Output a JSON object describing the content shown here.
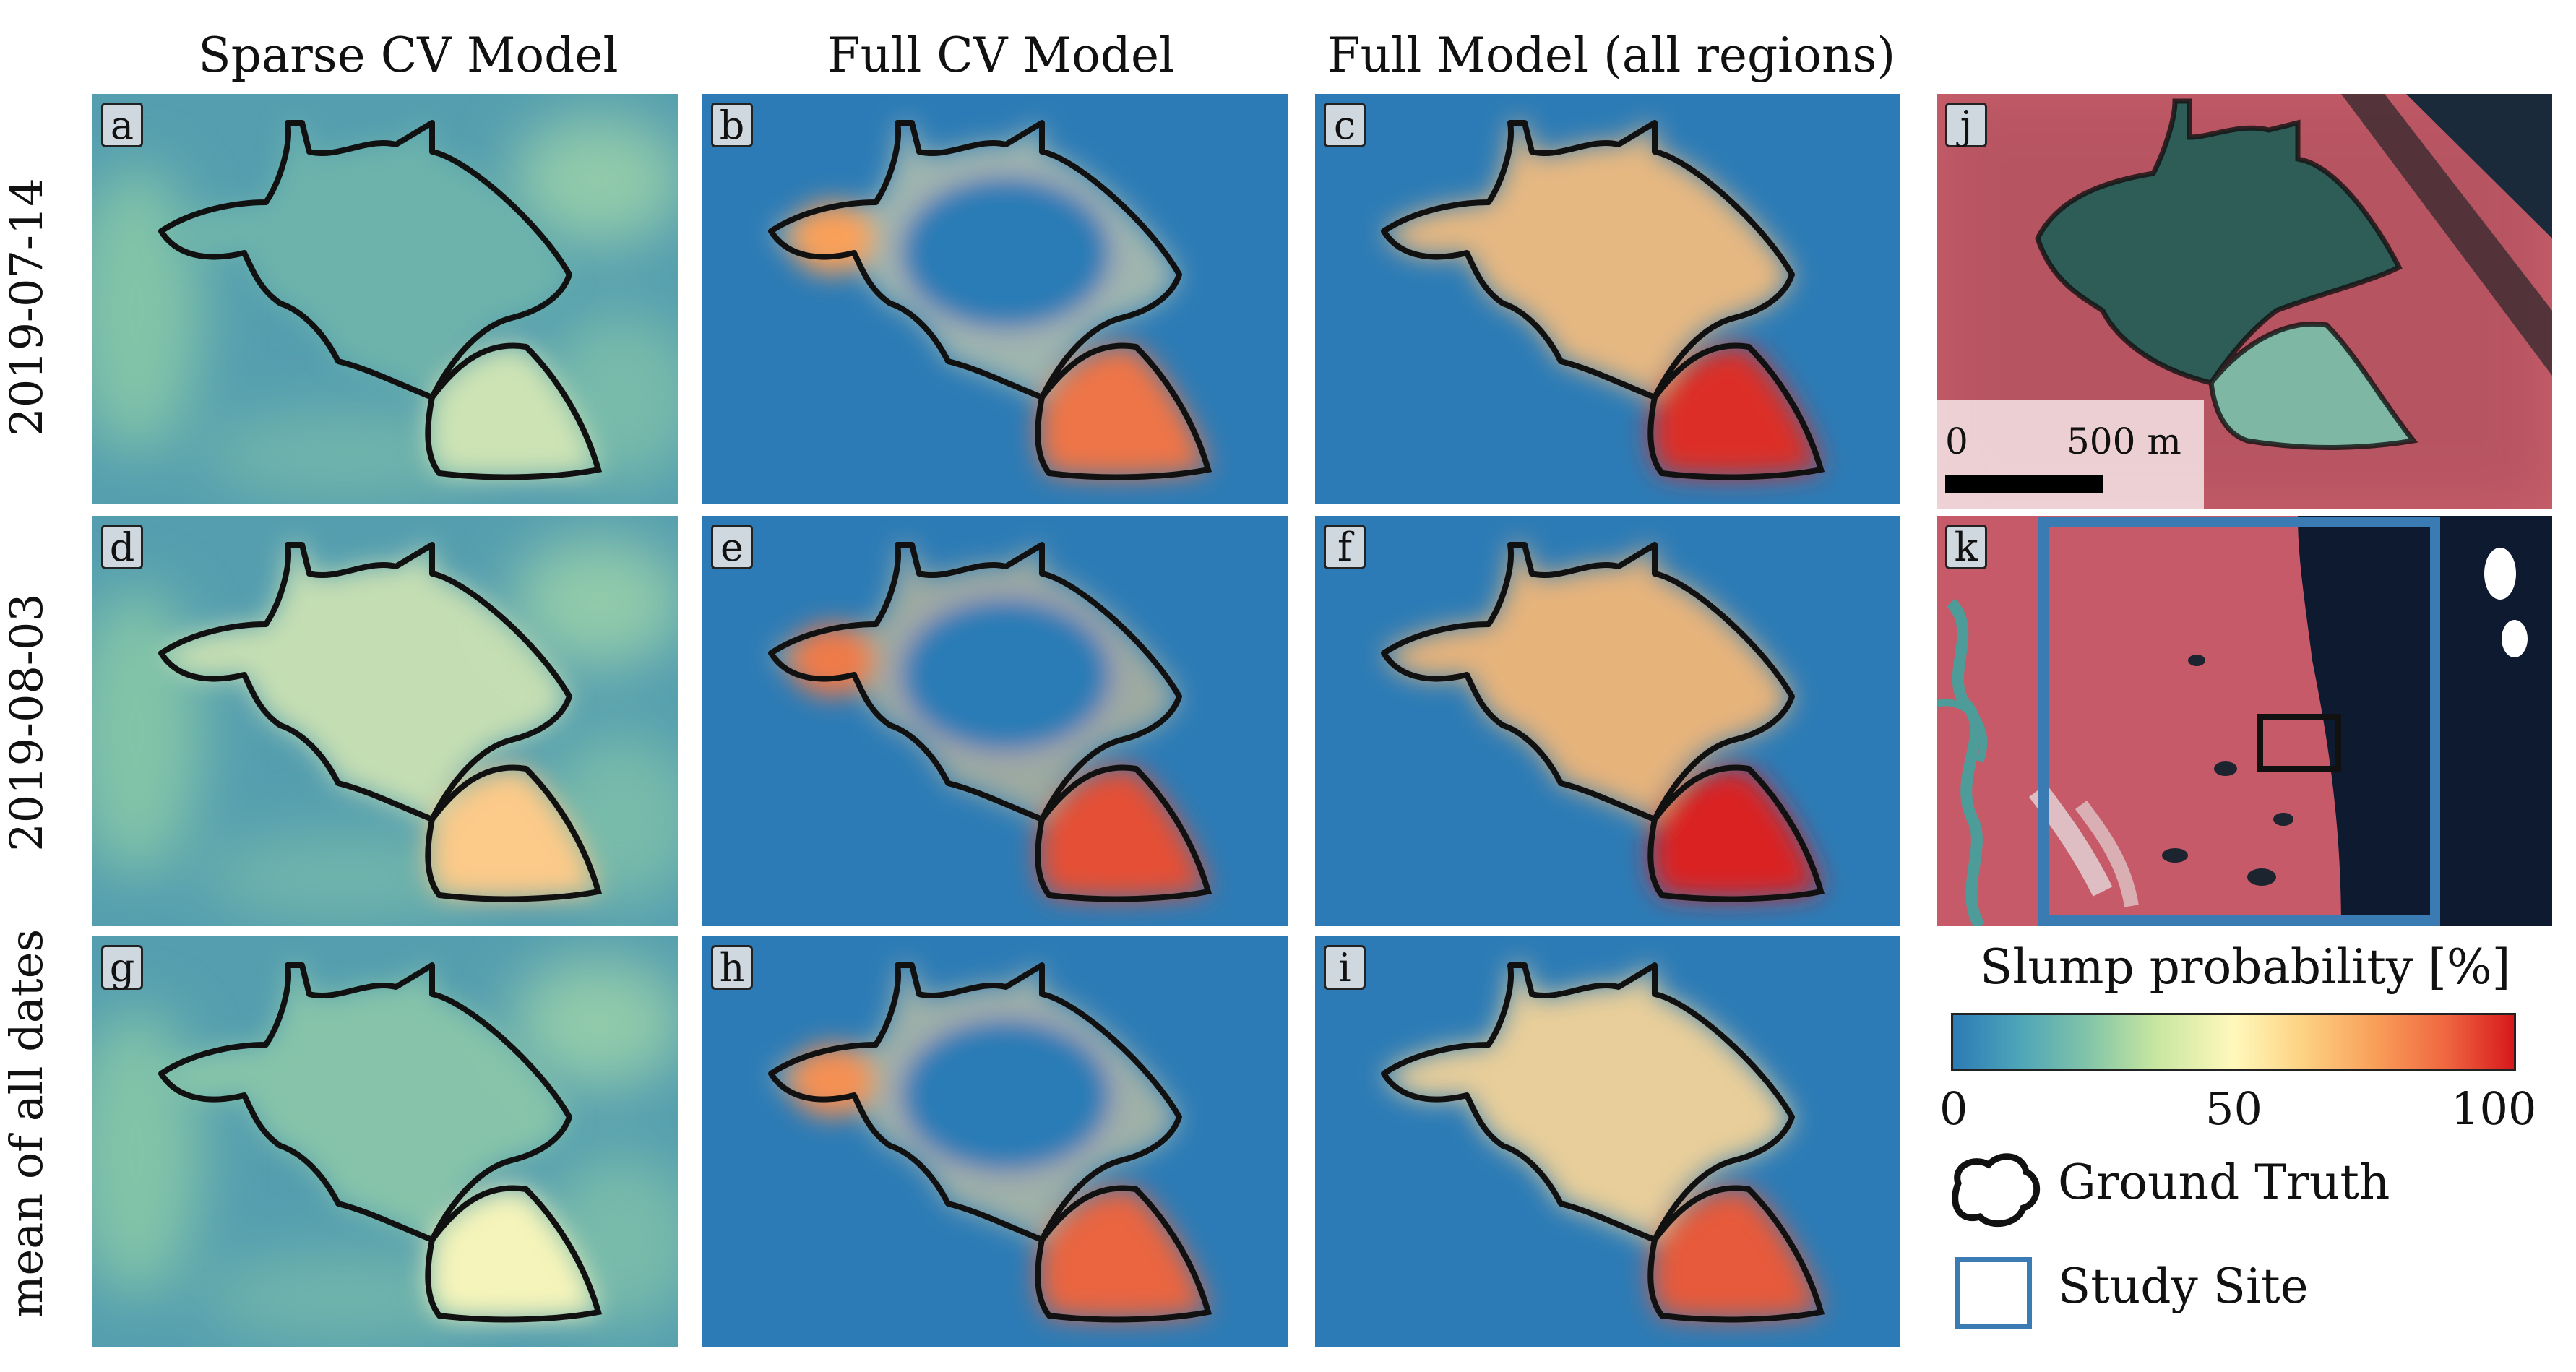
{
  "columns": [
    "Sparse CV Model",
    "Full CV Model",
    "Full Model (all regions)"
  ],
  "rows": [
    "2019-07-14",
    "2019-08-03",
    "mean of all dates"
  ],
  "panels": {
    "a": "a",
    "b": "b",
    "c": "c",
    "d": "d",
    "e": "e",
    "f": "f",
    "g": "g",
    "h": "h",
    "i": "i",
    "j": "j",
    "k": "k"
  },
  "scalebar": {
    "start": "0",
    "end": "500 m"
  },
  "legend": {
    "title": "Slump probability [%]",
    "ticks": [
      "0",
      "50",
      "100"
    ],
    "ground_truth": "Ground Truth",
    "study_site": "Study Site"
  },
  "panel_probability_levels": {
    "a": 0.22,
    "b": 0.65,
    "c": 0.78,
    "d": 0.45,
    "e": 0.72,
    "f": 0.8,
    "g": 0.3,
    "h": 0.68,
    "i": 0.7
  },
  "colors": {
    "low": "#2c7bb6",
    "mid": "#fff8bc",
    "high": "#d7191c",
    "outline": "#111111",
    "study_site": "#3a7bb3",
    "ir_vegetation": "#d9505f",
    "ir_slump": "#2f6f66",
    "sea": "#0b1a33"
  }
}
